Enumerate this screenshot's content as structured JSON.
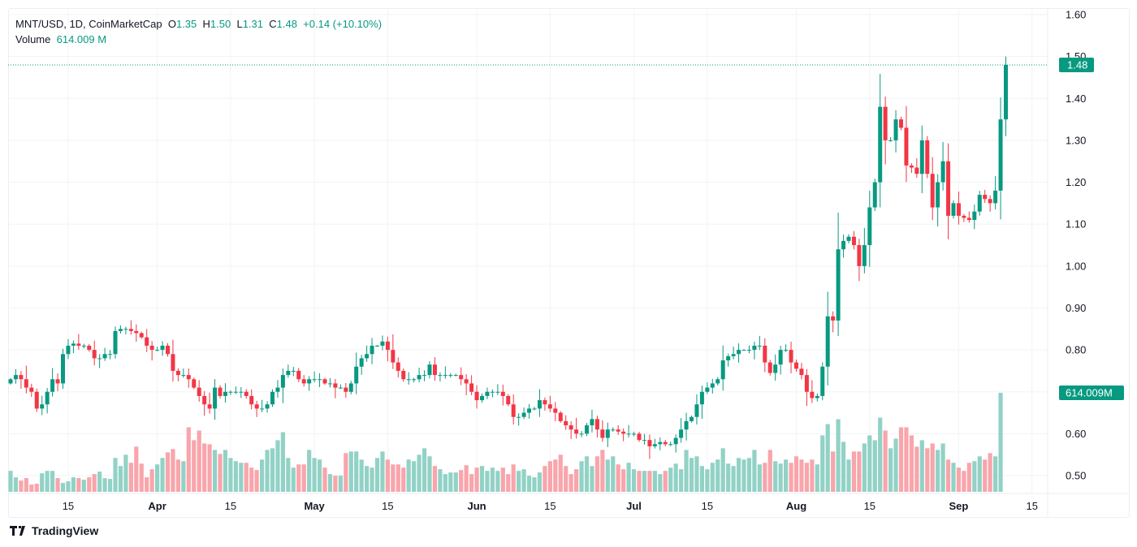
{
  "legend": {
    "symbol": "MNT/USD, 1D, CoinMarketCap",
    "o_label": "O",
    "o": "1.35",
    "h_label": "H",
    "h": "1.50",
    "l_label": "L",
    "l": "1.31",
    "c_label": "C",
    "c": "1.48",
    "change": "+0.14 (+10.10%)",
    "volume_label": "Volume",
    "volume": "614.009 M"
  },
  "badges": {
    "price": "1.48",
    "volume": "614.009M"
  },
  "branding": {
    "name": "TradingView"
  },
  "colors": {
    "up": "#089981",
    "down": "#f23645",
    "vol_up": "#92d2c6",
    "vol_down": "#f8a5ab",
    "grid": "#f2f3f5",
    "text": "#131722"
  },
  "chart_data": {
    "type": "candlestick",
    "title": "MNT/USD, 1D, CoinMarketCap",
    "ylim": [
      0.46,
      1.62
    ],
    "y_ticks": [
      "0.50",
      "0.60",
      "0.70",
      "0.80",
      "0.90",
      "1.00",
      "1.10",
      "1.20",
      "1.30",
      "1.40",
      "1.50",
      "1.60"
    ],
    "x_ticks": [
      {
        "label": "15",
        "day_index": 11
      },
      {
        "label": "Apr",
        "day_index": 28
      },
      {
        "label": "15",
        "day_index": 42
      },
      {
        "label": "May",
        "day_index": 58
      },
      {
        "label": "15",
        "day_index": 72
      },
      {
        "label": "Jun",
        "day_index": 89
      },
      {
        "label": "15",
        "day_index": 103
      },
      {
        "label": "Jul",
        "day_index": 119
      },
      {
        "label": "15",
        "day_index": 133
      },
      {
        "label": "Aug",
        "day_index": 150
      },
      {
        "label": "15",
        "day_index": 164
      },
      {
        "label": "Sep",
        "day_index": 181
      },
      {
        "label": "15",
        "day_index": 195
      }
    ],
    "first_open": 0.72,
    "close": [
      0.73,
      0.74,
      0.73,
      0.71,
      0.7,
      0.66,
      0.67,
      0.7,
      0.73,
      0.72,
      0.79,
      0.81,
      0.815,
      0.81,
      0.81,
      0.8,
      0.78,
      0.78,
      0.79,
      0.79,
      0.845,
      0.85,
      0.85,
      0.845,
      0.84,
      0.83,
      0.81,
      0.8,
      0.8,
      0.81,
      0.79,
      0.75,
      0.74,
      0.74,
      0.73,
      0.71,
      0.69,
      0.67,
      0.66,
      0.71,
      0.69,
      0.7,
      0.7,
      0.7,
      0.7,
      0.69,
      0.67,
      0.66,
      0.66,
      0.67,
      0.7,
      0.71,
      0.74,
      0.75,
      0.75,
      0.73,
      0.72,
      0.73,
      0.73,
      0.73,
      0.72,
      0.72,
      0.71,
      0.71,
      0.7,
      0.72,
      0.76,
      0.78,
      0.79,
      0.81,
      0.81,
      0.82,
      0.8,
      0.77,
      0.75,
      0.73,
      0.73,
      0.73,
      0.74,
      0.74,
      0.765,
      0.74,
      0.74,
      0.74,
      0.74,
      0.74,
      0.73,
      0.72,
      0.7,
      0.68,
      0.69,
      0.7,
      0.7,
      0.7,
      0.69,
      0.67,
      0.64,
      0.64,
      0.65,
      0.66,
      0.66,
      0.68,
      0.67,
      0.66,
      0.65,
      0.63,
      0.62,
      0.61,
      0.6,
      0.6,
      0.62,
      0.635,
      0.61,
      0.59,
      0.61,
      0.61,
      0.605,
      0.6,
      0.6,
      0.6,
      0.585,
      0.585,
      0.57,
      0.575,
      0.58,
      0.575,
      0.575,
      0.59,
      0.61,
      0.63,
      0.64,
      0.67,
      0.7,
      0.71,
      0.72,
      0.73,
      0.775,
      0.785,
      0.79,
      0.8,
      0.8,
      0.8,
      0.81,
      0.81,
      0.77,
      0.745,
      0.765,
      0.8,
      0.8,
      0.77,
      0.755,
      0.74,
      0.7,
      0.685,
      0.69,
      0.76,
      0.88,
      0.87,
      1.04,
      1.06,
      1.07,
      1.05,
      1.0,
      1.05,
      1.14,
      1.2,
      1.38,
      1.3,
      1.3,
      1.35,
      1.33,
      1.24,
      1.235,
      1.22,
      1.3,
      1.22,
      1.14,
      1.2,
      1.25,
      1.12,
      1.15,
      1.12,
      1.115,
      1.11,
      1.13,
      1.17,
      1.16,
      1.15,
      1.18,
      1.35,
      1.48
    ],
    "volume_millions": [
      130,
      90,
      70,
      85,
      45,
      50,
      115,
      130,
      130,
      85,
      55,
      65,
      90,
      85,
      75,
      90,
      110,
      125,
      85,
      80,
      210,
      160,
      230,
      180,
      280,
      175,
      90,
      140,
      170,
      210,
      245,
      265,
      200,
      190,
      400,
      320,
      380,
      300,
      295,
      260,
      235,
      260,
      210,
      190,
      180,
      180,
      150,
      135,
      200,
      260,
      270,
      320,
      370,
      210,
      150,
      170,
      170,
      260,
      210,
      200,
      150,
      110,
      100,
      100,
      240,
      250,
      250,
      200,
      160,
      150,
      210,
      250,
      200,
      170,
      170,
      150,
      200,
      190,
      230,
      270,
      220,
      160,
      140,
      110,
      120,
      120,
      135,
      165,
      110,
      150,
      160,
      130,
      150,
      130,
      150,
      110,
      170,
      130,
      140,
      100,
      90,
      120,
      160,
      190,
      200,
      230,
      160,
      110,
      140,
      190,
      220,
      160,
      220,
      260,
      200,
      220,
      170,
      140,
      180,
      140,
      130,
      130,
      130,
      130,
      110,
      130,
      150,
      175,
      140,
      260,
      210,
      220,
      160,
      140,
      180,
      200,
      270,
      175,
      160,
      210,
      200,
      210,
      260,
      170,
      180,
      260,
      190,
      175,
      200,
      180,
      220,
      200,
      180,
      200,
      170,
      350,
      420,
      250,
      450,
      310,
      200,
      250,
      250,
      300,
      350,
      320,
      460,
      380,
      270,
      330,
      400,
      400,
      350,
      280,
      320,
      270,
      300,
      260,
      300,
      200,
      180,
      150,
      130,
      180,
      190,
      220,
      200,
      240,
      220,
      614.009
    ],
    "last_candle": {
      "open": 1.35,
      "high": 1.5,
      "low": 1.31,
      "close": 1.48
    }
  }
}
